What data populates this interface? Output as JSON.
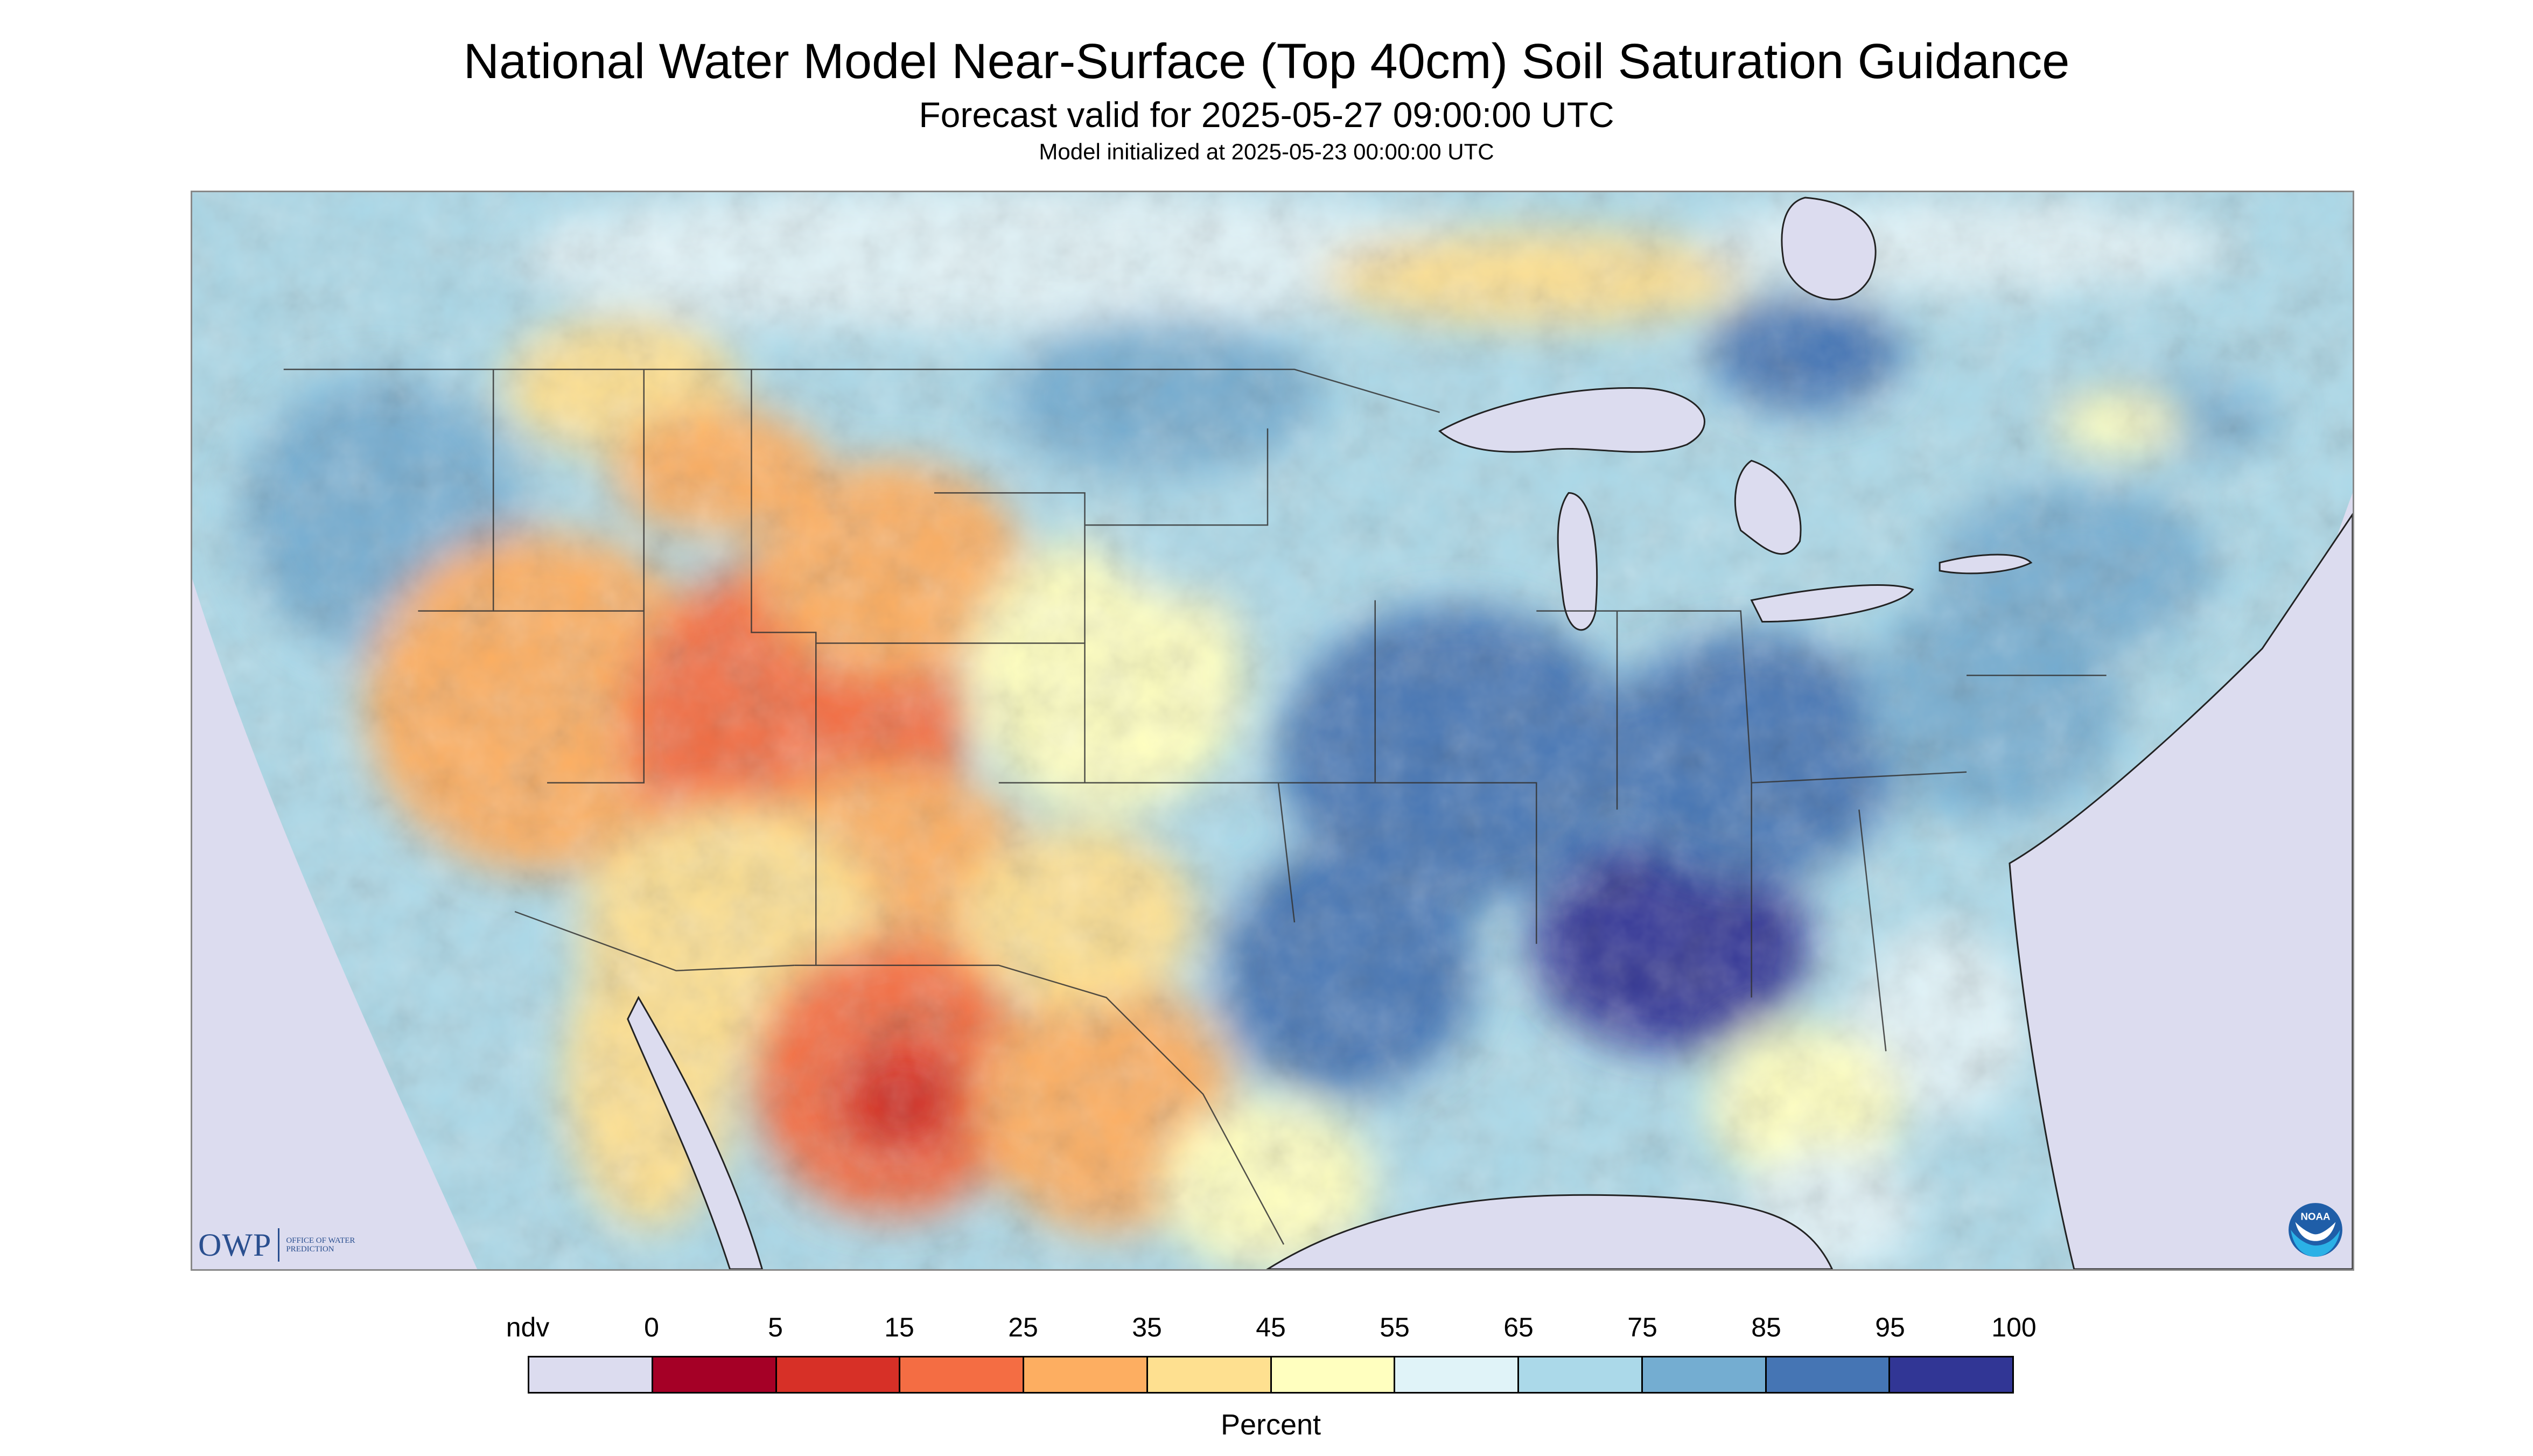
{
  "header": {
    "title": "National Water Model Near-Surface (Top 40cm) Soil Saturation Guidance",
    "subtitle": "Forecast valid for 2025-05-27 09:00:00 UTC",
    "init_line": "Model initialized at 2025-05-23 00:00:00 UTC"
  },
  "logos": {
    "owp_text": "OWP",
    "owp_sub": "OFFICE OF WATER PREDICTION",
    "noaa_icon": "noaa-logo"
  },
  "legend": {
    "title": "Percent",
    "labels": [
      "ndv",
      "0",
      "5",
      "15",
      "25",
      "35",
      "45",
      "55",
      "65",
      "75",
      "85",
      "95",
      "100"
    ],
    "colors": [
      "#dcdcef",
      "#a50026",
      "#d73027",
      "#f46d43",
      "#fdae61",
      "#fee090",
      "#ffffbf",
      "#e0f3f8",
      "#abd9e9",
      "#74add1",
      "#4575b4",
      "#313695"
    ]
  },
  "map": {
    "nodata_color": "#dcdcef",
    "water_color": "#dcdcef",
    "boundary_color": "#333333"
  }
}
